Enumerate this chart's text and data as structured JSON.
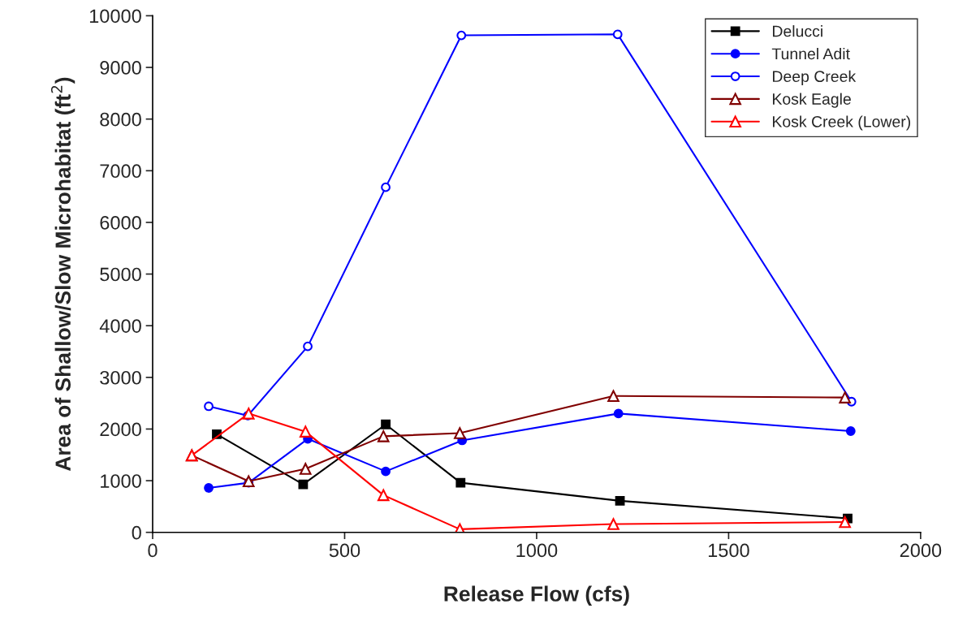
{
  "chart_data": {
    "type": "line",
    "xlabel": "Release Flow (cfs)",
    "ylabel": "Area of Shallow/Slow Microhabitat (ft$^{2}$)",
    "xlim": [
      0,
      2000
    ],
    "xticks": [
      0,
      500,
      1000,
      1500,
      2000
    ],
    "ylim": [
      0,
      10000
    ],
    "yticks": [
      0,
      1000,
      2000,
      3000,
      4000,
      5000,
      6000,
      7000,
      8000,
      9000,
      10000
    ],
    "grid": false,
    "legend": "top right",
    "line_style": "solid",
    "series": [
      {
        "name": "Delucci",
        "color": "#000000",
        "marker": "square",
        "x": [
          167,
          392,
          607,
          802,
          1217,
          1810
        ],
        "values": [
          1900,
          930,
          2090,
          960,
          610,
          270
        ]
      },
      {
        "name": "Tunnel Adit",
        "color": "#0000ff",
        "marker": "circle",
        "x": [
          146,
          250,
          404,
          607,
          806,
          1213,
          1818
        ],
        "values": [
          860,
          960,
          1810,
          1180,
          1780,
          2300,
          1960
        ]
      },
      {
        "name": "Deep Creek",
        "color": "#0000ff",
        "marker": "circle",
        "x": [
          146,
          248,
          404,
          607,
          804,
          1211,
          1820
        ],
        "values": [
          2440,
          2260,
          3600,
          6680,
          9620,
          9640,
          2530
        ]
      },
      {
        "name": "Kosk Eagle",
        "color": "#800000",
        "marker": "triangle",
        "x": [
          102,
          250,
          398,
          601,
          800,
          1200,
          1803
        ],
        "values": [
          1490,
          990,
          1230,
          1860,
          1920,
          2640,
          2610
        ]
      },
      {
        "name": "Kosk Creek (Lower)",
        "color": "#ff0000",
        "marker": "triangle",
        "x": [
          102,
          250,
          398,
          601,
          800,
          1200,
          1803
        ],
        "values": [
          1490,
          2300,
          1950,
          720,
          60,
          160,
          200
        ]
      }
    ]
  }
}
